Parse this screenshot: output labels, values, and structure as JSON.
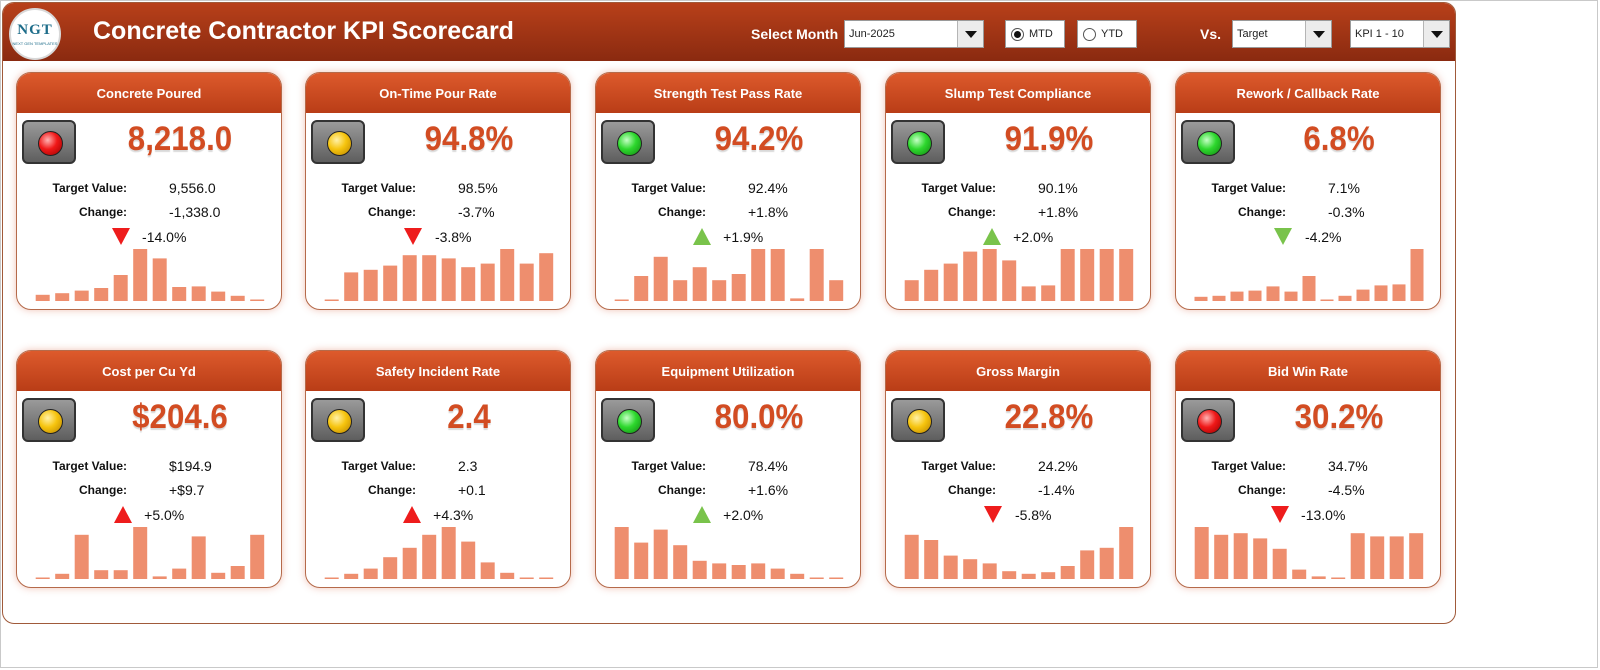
{
  "header": {
    "logo_text": "NGT",
    "logo_subtext": "NEXT GEN TEMPLATES",
    "title": "Concrete Contractor KPI Scorecard",
    "select_month_label": "Select Month",
    "month_value": "Jun-2025",
    "mtd_label": "MTD",
    "ytd_label": "YTD",
    "mtd_selected": true,
    "vs_label": "Vs.",
    "vs_value": "Target",
    "kpi_range_value": "KPI 1 - 10"
  },
  "labels": {
    "target": "Target Value:",
    "change": "Change:"
  },
  "colors": {
    "accent": "#c0441b",
    "bar": "#ee8e6e",
    "red": "#ee1c1c",
    "green": "#79c34b",
    "amber": "#f6c40e"
  },
  "cards": [
    {
      "title": "Concrete Poured",
      "status": "red",
      "value": "8,218.0",
      "target": "9,556.0",
      "change": "-1,338.0",
      "pct": "-14.0%",
      "trend": "down",
      "good": false,
      "bars": [
        0.12,
        0.15,
        0.2,
        0.25,
        0.5,
        1.0,
        0.82,
        0.27,
        0.28,
        0.18,
        0.1,
        0.02
      ]
    },
    {
      "title": "On-Time Pour Rate",
      "status": "amber",
      "value": "94.8%",
      "target": "98.5%",
      "change": "-3.7%",
      "pct": "-3.8%",
      "trend": "down",
      "good": false,
      "bars": [
        0.02,
        0.55,
        0.6,
        0.68,
        0.88,
        0.88,
        0.82,
        0.65,
        0.72,
        1.0,
        0.72,
        0.92
      ]
    },
    {
      "title": "Strength Test Pass Rate",
      "status": "green",
      "value": "94.2%",
      "target": "92.4%",
      "change": "+1.8%",
      "pct": "+1.9%",
      "trend": "up",
      "good": true,
      "bars": [
        0.02,
        0.48,
        0.85,
        0.4,
        0.65,
        0.4,
        0.52,
        1.0,
        1.0,
        0.05,
        1.0,
        0.4
      ]
    },
    {
      "title": "Slump Test Compliance",
      "status": "green",
      "value": "91.9%",
      "target": "90.1%",
      "change": "+1.8%",
      "pct": "+2.0%",
      "trend": "up",
      "good": true,
      "bars": [
        0.4,
        0.6,
        0.72,
        0.95,
        1.0,
        0.78,
        0.28,
        0.3,
        1.0,
        1.0,
        1.0,
        1.0
      ]
    },
    {
      "title": "Rework / Callback Rate",
      "status": "green",
      "value": "6.8%",
      "target": "7.1%",
      "change": "-0.3%",
      "pct": "-4.2%",
      "trend": "down",
      "good": true,
      "bars": [
        0.08,
        0.1,
        0.18,
        0.2,
        0.28,
        0.18,
        0.48,
        0.02,
        0.1,
        0.22,
        0.3,
        0.32,
        1.0
      ]
    },
    {
      "title": "Cost per Cu Yd",
      "status": "amber",
      "value": "$204.6",
      "target": "$194.9",
      "change": "+$9.7",
      "pct": "+5.0%",
      "trend": "up",
      "good": false,
      "bars": [
        0.02,
        0.1,
        0.85,
        0.17,
        0.17,
        1.0,
        0.05,
        0.2,
        0.82,
        0.12,
        0.25,
        0.85
      ]
    },
    {
      "title": "Safety Incident Rate",
      "status": "amber",
      "value": "2.4",
      "target": "2.3",
      "change": "+0.1",
      "pct": "+4.3%",
      "trend": "up",
      "good": false,
      "bars": [
        0.02,
        0.1,
        0.2,
        0.42,
        0.6,
        0.85,
        1.0,
        0.72,
        0.32,
        0.12,
        0.02,
        0.02
      ]
    },
    {
      "title": "Equipment Utilization",
      "status": "green",
      "value": "80.0%",
      "target": "78.4%",
      "change": "+1.6%",
      "pct": "+2.0%",
      "trend": "up",
      "good": true,
      "bars": [
        1.0,
        0.7,
        0.95,
        0.65,
        0.35,
        0.3,
        0.27,
        0.3,
        0.2,
        0.1,
        0.02,
        0.02
      ]
    },
    {
      "title": "Gross Margin",
      "status": "amber",
      "value": "22.8%",
      "target": "24.2%",
      "change": "-1.4%",
      "pct": "-5.8%",
      "trend": "down",
      "good": false,
      "bars": [
        0.85,
        0.75,
        0.45,
        0.38,
        0.3,
        0.15,
        0.1,
        0.13,
        0.25,
        0.55,
        0.6,
        1.0
      ]
    },
    {
      "title": "Bid Win Rate",
      "status": "red",
      "value": "30.2%",
      "target": "34.7%",
      "change": "-4.5%",
      "pct": "-13.0%",
      "trend": "down",
      "good": false,
      "bars": [
        1.0,
        0.85,
        0.88,
        0.78,
        0.58,
        0.18,
        0.05,
        0.02,
        0.88,
        0.82,
        0.82,
        0.88
      ]
    }
  ]
}
